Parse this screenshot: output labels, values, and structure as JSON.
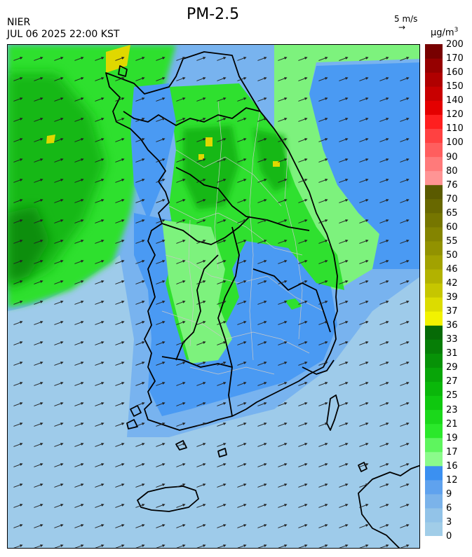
{
  "header": {
    "agency": "NIER",
    "timestamp": "JUL 06 2025 22:00 KST",
    "title": "PM-2.5",
    "wind_scale_label": "5 m/s",
    "wind_scale_arrow": "→",
    "unit_base": "μg/m",
    "unit_exp": "3"
  },
  "legend": {
    "levels": [
      "0",
      "3",
      "6",
      "9",
      "12",
      "16",
      "17",
      "19",
      "21",
      "23",
      "25",
      "27",
      "29",
      "31",
      "33",
      "36",
      "37",
      "39",
      "42",
      "46",
      "50",
      "55",
      "60",
      "65",
      "70",
      "76",
      "80",
      "90",
      "100",
      "110",
      "120",
      "140",
      "150",
      "160",
      "170",
      "200"
    ],
    "colors": [
      "#a1cde8",
      "#92c3e8",
      "#7bb3ea",
      "#5fa2ee",
      "#3b90f1",
      "#8bfb8b",
      "#5ef55e",
      "#2be82b",
      "#1bd81b",
      "#0fc80f",
      "#0ab70a",
      "#08a508",
      "#079207",
      "#067e06",
      "#066a06",
      "#f2f200",
      "#dcdc00",
      "#c6c600",
      "#b2b200",
      "#a2a200",
      "#929200",
      "#848400",
      "#767600",
      "#686800",
      "#5a5a00",
      "#ff9494",
      "#ff7a7a",
      "#ff5e5e",
      "#ff4141",
      "#ff1f1f",
      "#e40000",
      "#c80000",
      "#b00000",
      "#960000",
      "#780000"
    ]
  },
  "map": {
    "colors": {
      "sea_far": "#9ecbea",
      "sea_near": "#78b3ef",
      "clean_land": "#4a9af3",
      "moderate_light": "#7df27d",
      "moderate": "#2fe02f",
      "moderate_dark": "#17b817",
      "moderate_darker": "#0a8e0a",
      "hotspot": "#e0d800",
      "coast_line": "#000000",
      "district_line": "#c8c8c8",
      "wind_arrow": "#222222"
    },
    "wind_direction_deg": 20
  }
}
